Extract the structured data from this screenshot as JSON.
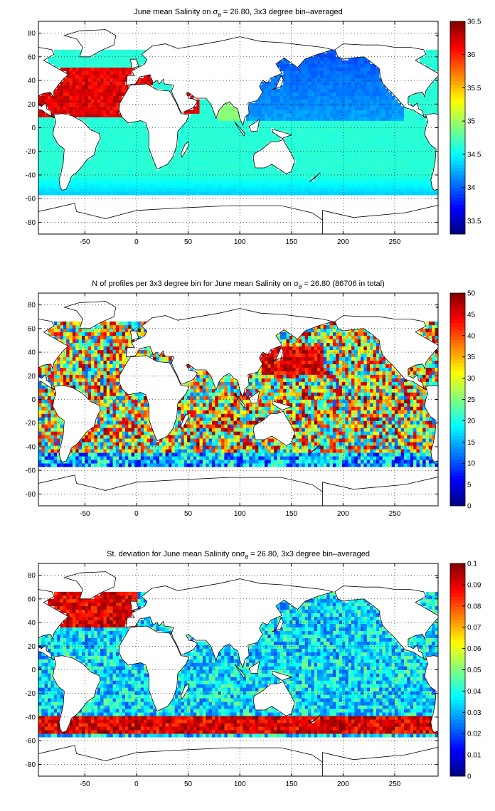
{
  "chart_data": [
    {
      "type": "heatmap",
      "title_pre": "June mean Salinity on ",
      "title_sigma": "σ",
      "title_sub": "θ",
      "title_post": " = 26.80, 3x3 degree bin–averaged",
      "xticks": [
        -50,
        0,
        50,
        100,
        150,
        200,
        250
      ],
      "yticks": [
        80,
        60,
        40,
        20,
        0,
        -20,
        -40,
        -60,
        -80
      ],
      "xlim": [
        -95,
        292
      ],
      "ylim": [
        -90,
        90
      ],
      "grid": true,
      "colorbar": {
        "min": 33.3,
        "max": 36.5,
        "ticks": [
          "36.5",
          "36",
          "35.5",
          "35",
          "34.5",
          "34",
          "33.5"
        ],
        "tick_values": [
          36.5,
          36,
          35.5,
          35,
          34.5,
          34,
          33.5
        ]
      },
      "colormap": "jet",
      "field": "salinity"
    },
    {
      "type": "heatmap",
      "title_pre": "N of profiles per 3x3 degree bin for June mean Salinity on ",
      "title_sigma": "σ",
      "title_sub": "θ",
      "title_post": " = 26.80 (86706 in total)",
      "xticks": [
        -50,
        0,
        50,
        100,
        150,
        200,
        250
      ],
      "yticks": [
        80,
        60,
        40,
        20,
        0,
        -20,
        -40,
        -60,
        -80
      ],
      "xlim": [
        -95,
        292
      ],
      "ylim": [
        -90,
        90
      ],
      "grid": true,
      "colorbar": {
        "min": 0,
        "max": 50,
        "ticks": [
          "50",
          "45",
          "40",
          "35",
          "30",
          "25",
          "20",
          "15",
          "10",
          "5",
          "0"
        ],
        "tick_values": [
          50,
          45,
          40,
          35,
          30,
          25,
          20,
          15,
          10,
          5,
          0
        ]
      },
      "colormap": "jet",
      "field": "count"
    },
    {
      "type": "heatmap",
      "title_pre": "St. deviation for June mean Salinity on",
      "title_sigma": "σ",
      "title_sub": "θ",
      "title_post": " = 26.80, 3x3 degree bin–averaged",
      "xticks": [
        -50,
        0,
        50,
        100,
        150,
        200,
        250
      ],
      "yticks": [
        80,
        60,
        40,
        20,
        0,
        -20,
        -40,
        -60,
        -80
      ],
      "xlim": [
        -95,
        292
      ],
      "ylim": [
        -90,
        90
      ],
      "grid": true,
      "colorbar": {
        "min": 0,
        "max": 0.1,
        "ticks": [
          "0.1",
          "0.09",
          "0.08",
          "0.07",
          "0.06",
          "0.05",
          "0.04",
          "0.03",
          "0.02",
          "0.01",
          "0"
        ],
        "tick_values": [
          0.1,
          0.09,
          0.08,
          0.07,
          0.06,
          0.05,
          0.04,
          0.03,
          0.02,
          0.01,
          0
        ]
      },
      "colormap": "jet",
      "field": "stdev"
    }
  ]
}
